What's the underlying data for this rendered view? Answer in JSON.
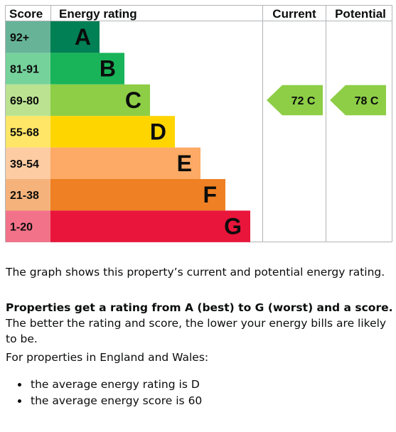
{
  "chart_data": {
    "type": "bar",
    "headers": {
      "score": "Score",
      "rating": "Energy rating",
      "current": "Current",
      "potential": "Potential"
    },
    "bands": [
      {
        "range": "92+",
        "letter": "A",
        "color": "#008054"
      },
      {
        "range": "81-91",
        "letter": "B",
        "color": "#19b459"
      },
      {
        "range": "69-80",
        "letter": "C",
        "color": "#8dce46"
      },
      {
        "range": "55-68",
        "letter": "D",
        "color": "#ffd500"
      },
      {
        "range": "39-54",
        "letter": "E",
        "color": "#fcaa65"
      },
      {
        "range": "21-38",
        "letter": "F",
        "color": "#ef8023"
      },
      {
        "range": "1-20",
        "letter": "G",
        "color": "#e9153b"
      }
    ],
    "current": {
      "score": 72,
      "letter": "C",
      "label": "72 C"
    },
    "potential": {
      "score": 78,
      "letter": "C",
      "label": "78 C"
    }
  },
  "text": {
    "para1": "The graph shows this property’s current and potential energy rating.",
    "para2_bold": "Properties get a rating from A (best) to G (worst) and a score.",
    "para2_rest": " The better the rating and score, the lower your energy bills are likely to be.",
    "para3": "For properties in England and Wales:",
    "bullets": [
      "the average energy rating is D",
      "the average energy score is 60"
    ]
  }
}
